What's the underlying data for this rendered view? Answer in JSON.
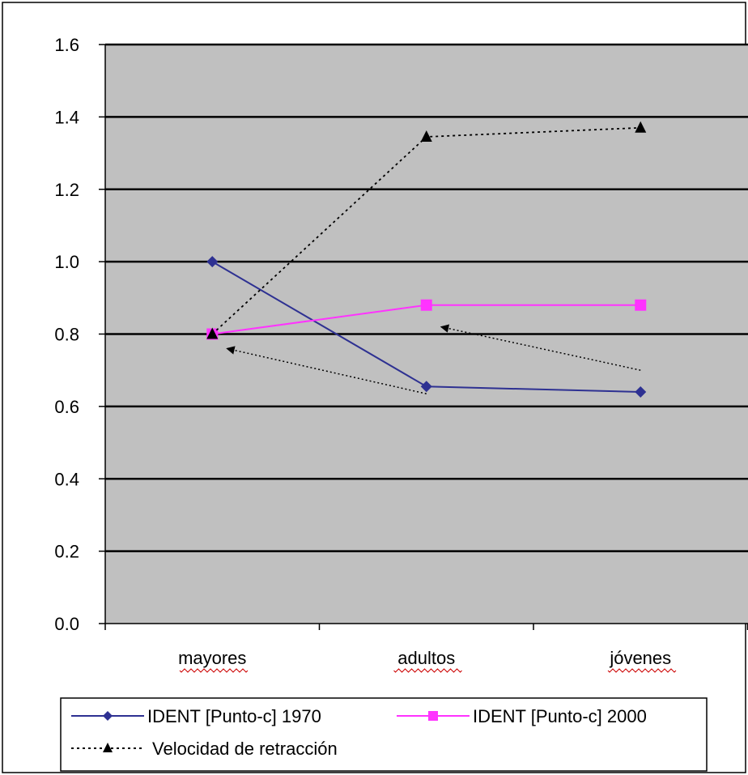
{
  "chart_data": {
    "type": "line",
    "categories": [
      "mayores",
      "adultos",
      "jóvenes"
    ],
    "ylim": [
      0,
      1.6
    ],
    "yticks": [
      "0.0",
      "0.2",
      "0.4",
      "0.6",
      "0.8",
      "1.0",
      "1.2",
      "1.4",
      "1.6"
    ],
    "grid": true,
    "legend_position": "bottom",
    "series": [
      {
        "name": "IDENT [Punto-c] 1970",
        "values": [
          1.0,
          0.655,
          0.64
        ],
        "color": "#2e3192",
        "marker": "diamond",
        "dash": "solid"
      },
      {
        "name": "IDENT [Punto-c] 2000",
        "values": [
          0.8,
          0.88,
          0.88
        ],
        "color": "#ff33ff",
        "marker": "square",
        "dash": "solid"
      },
      {
        "name": "Velocidad de retracción",
        "values": [
          0.8,
          1.345,
          1.37
        ],
        "color": "#000000",
        "marker": "triangle",
        "dash": "dotted"
      }
    ],
    "annotations": [
      {
        "type": "arrow",
        "from": {
          "category": 1,
          "y": 0.635
        },
        "to": {
          "category": 0,
          "y": 0.76
        }
      },
      {
        "type": "arrow",
        "from": {
          "category": 2,
          "y": 0.7
        },
        "to": {
          "category": 1,
          "y": 0.82
        }
      }
    ],
    "plot_background": "#c0c0c0",
    "grid_color": "#000000"
  }
}
